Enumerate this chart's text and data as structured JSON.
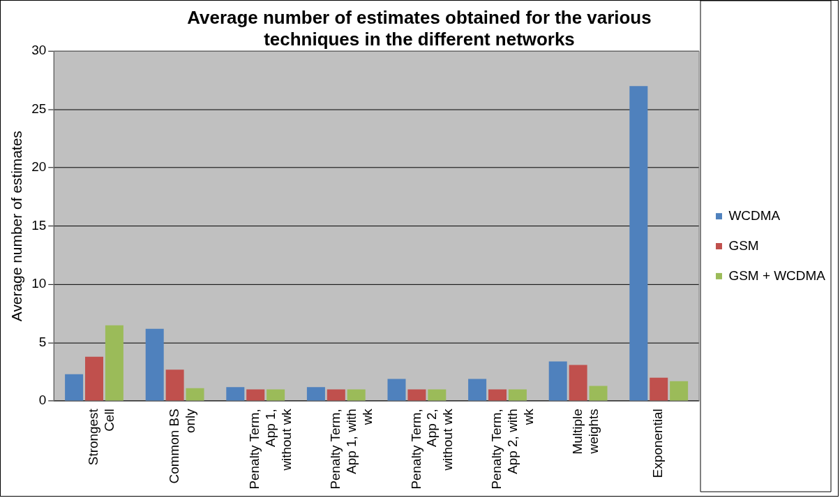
{
  "chart_data": {
    "type": "bar",
    "title": "Average number of estimates obtained for the various techniques in the different networks",
    "ylabel": "Average number of estimates",
    "categories": [
      "Strongest Cell",
      "Common BS only",
      "Penalty Term, App 1, without wk",
      "Penalty Term, App 1, with wk",
      "Penalty Term, App 2, without wk",
      "Penalty Term, App 2, with wk",
      "Multiple weights",
      "Exponential"
    ],
    "series": [
      {
        "name": "WCDMA",
        "color": "#4f81bd",
        "values": [
          2.3,
          6.2,
          1.2,
          1.2,
          1.9,
          1.9,
          3.4,
          27.0
        ]
      },
      {
        "name": "GSM",
        "color": "#c0504d",
        "values": [
          3.8,
          2.7,
          1.0,
          1.0,
          1.0,
          1.0,
          3.1,
          2.0
        ]
      },
      {
        "name": "GSM + WCDMA",
        "color": "#9bbb59",
        "values": [
          6.5,
          1.1,
          1.0,
          1.0,
          1.0,
          1.0,
          1.3,
          1.7
        ]
      }
    ],
    "ylim": [
      0,
      30
    ],
    "yticks": [
      0,
      5,
      10,
      15,
      20,
      25,
      30
    ],
    "grid": "y",
    "legend": "right"
  }
}
